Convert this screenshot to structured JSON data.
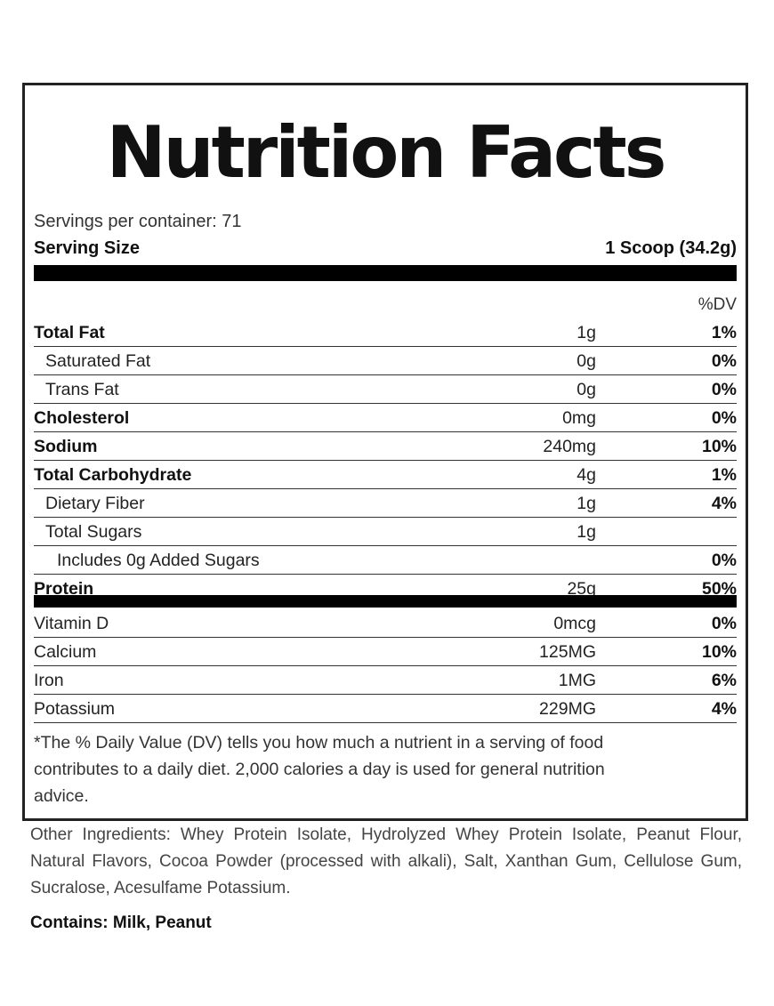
{
  "label": {
    "title": "Nutrition Facts",
    "servings_per_container": "Servings per container: 71",
    "serving_size_label": "Serving Size",
    "serving_size_value": "1 Scoop (34.2g)",
    "dv_header": "%DV",
    "nutrients": [
      {
        "name": "Total Fat",
        "amount": "1g",
        "dv": "1%"
      },
      {
        "name": "Saturated Fat",
        "amount": "0g",
        "dv": "0%"
      },
      {
        "name": "Trans Fat",
        "amount": "0g",
        "dv": "0%"
      },
      {
        "name": "Cholesterol",
        "amount": "0mg",
        "dv": "0%"
      },
      {
        "name": "Sodium",
        "amount": "240mg",
        "dv": "10%"
      },
      {
        "name": "Total Carbohydrate",
        "amount": "4g",
        "dv": "1%"
      },
      {
        "name": "Dietary Fiber",
        "amount": "1g",
        "dv": "4%"
      },
      {
        "name": "Total Sugars",
        "amount": "1g",
        "dv": ""
      },
      {
        "name": "Includes 0g Added Sugars",
        "amount": "",
        "dv": "0%"
      },
      {
        "name": "Protein",
        "amount": "25g",
        "dv": "50%"
      }
    ],
    "vitamins": [
      {
        "name": "Vitamin D",
        "amount": "0mcg",
        "dv": "0%"
      },
      {
        "name": "Calcium",
        "amount": "125MG",
        "dv": "10%"
      },
      {
        "name": "Iron",
        "amount": "1MG",
        "dv": "6%"
      },
      {
        "name": "Potassium",
        "amount": "229MG",
        "dv": "4%"
      }
    ],
    "footnote": "*The % Daily Value (DV) tells you how much a nutrient in a serving of food contributes to a daily diet. 2,000 calories a day is used for general nutrition advice."
  },
  "ingredients": "Other Ingredients: Whey Protein Isolate, Hydrolyzed Whey Protein Isolate, Peanut Flour, Natural Flavors, Cocoa Powder (processed with alkali), Salt, Xanthan Gum, Cellulose Gum, Sucralose, Acesulfame Potassium.",
  "contains": "Contains: Milk, Peanut"
}
